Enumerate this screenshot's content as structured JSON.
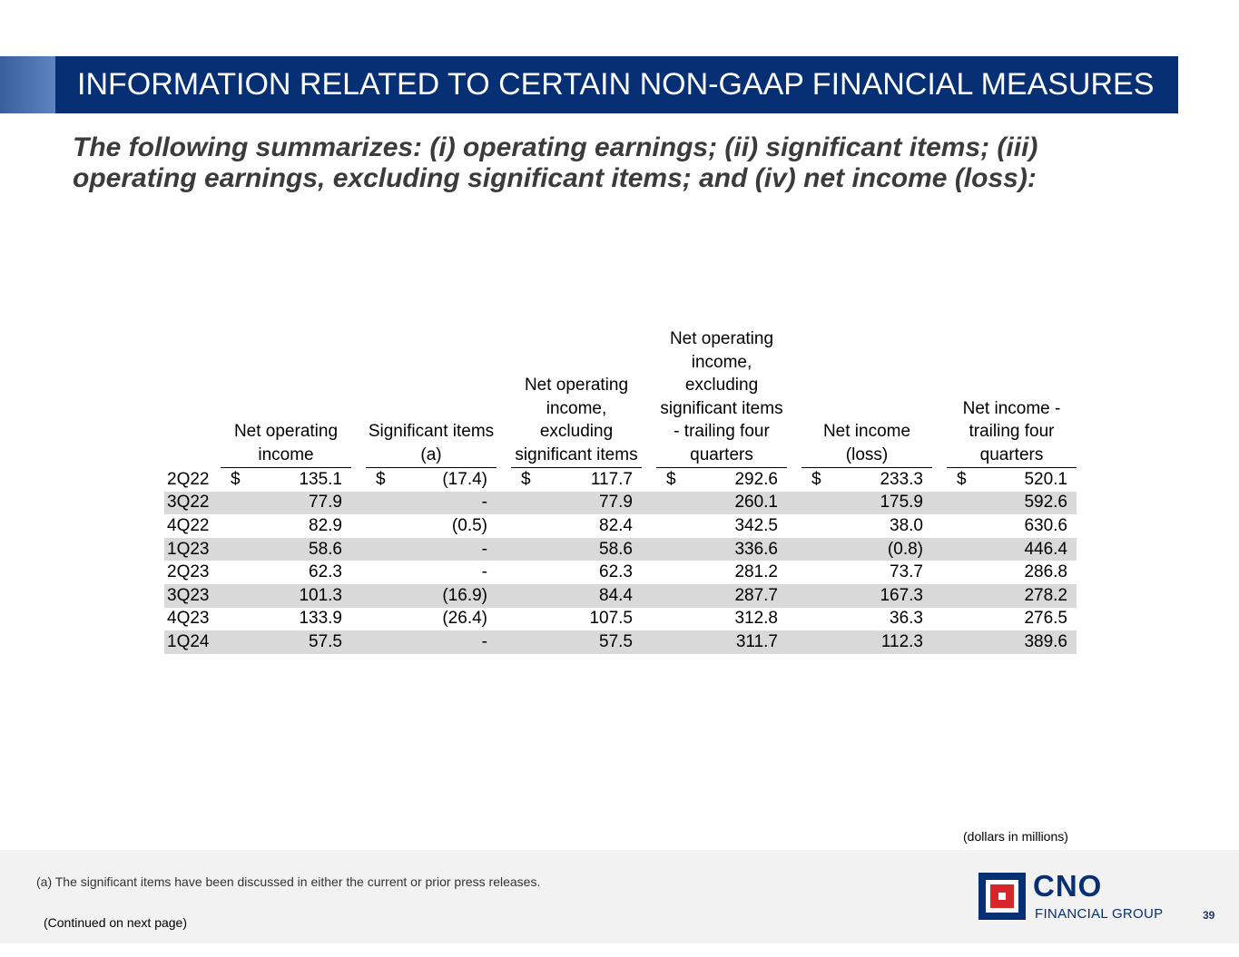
{
  "header": {
    "title": "INFORMATION RELATED TO CERTAIN NON-GAAP FINANCIAL MEASURES"
  },
  "subtitle": "The following summarizes: (i) operating earnings; (ii) significant items; (iii) operating earnings, excluding significant items; and (iv) net income (loss):",
  "table": {
    "columns": [
      "Net operating income",
      "Significant items (a)",
      "Net operating income, excluding significant items",
      "Net operating income, excluding significant items - trailing four quarters",
      "Net income (loss)",
      "Net income - trailing four quarters"
    ],
    "currency_symbol": "$",
    "rows": [
      {
        "label": "2Q22",
        "values": [
          "135.1",
          "(17.4)",
          "117.7",
          "292.6",
          "233.3",
          "520.1"
        ]
      },
      {
        "label": "3Q22",
        "values": [
          "77.9",
          "-",
          "77.9",
          "260.1",
          "175.9",
          "592.6"
        ]
      },
      {
        "label": "4Q22",
        "values": [
          "82.9",
          "(0.5)",
          "82.4",
          "342.5",
          "38.0",
          "630.6"
        ]
      },
      {
        "label": "1Q23",
        "values": [
          "58.6",
          "-",
          "58.6",
          "336.6",
          "(0.8)",
          "446.4"
        ]
      },
      {
        "label": "2Q23",
        "values": [
          "62.3",
          "-",
          "62.3",
          "281.2",
          "73.7",
          "286.8"
        ]
      },
      {
        "label": "3Q23",
        "values": [
          "101.3",
          "(16.9)",
          "84.4",
          "287.7",
          "167.3",
          "278.2"
        ]
      },
      {
        "label": "4Q23",
        "values": [
          "133.9",
          "(26.4)",
          "107.5",
          "312.8",
          "36.3",
          "276.5"
        ]
      },
      {
        "label": "1Q24",
        "values": [
          "57.5",
          "-",
          "57.5",
          "311.7",
          "112.3",
          "389.6"
        ]
      }
    ]
  },
  "units_note": "(dollars in millions)",
  "footnote": "(a) The significant items have been discussed in either the current or prior press releases.",
  "continued": "(Continued on next page)",
  "logo": {
    "name": "CNO",
    "subtitle": "FINANCIAL GROUP"
  },
  "page_number": "39",
  "colors": {
    "navy": "#062f74",
    "accent_red": "#d8242a",
    "row_shade": "#d9d9d9"
  }
}
